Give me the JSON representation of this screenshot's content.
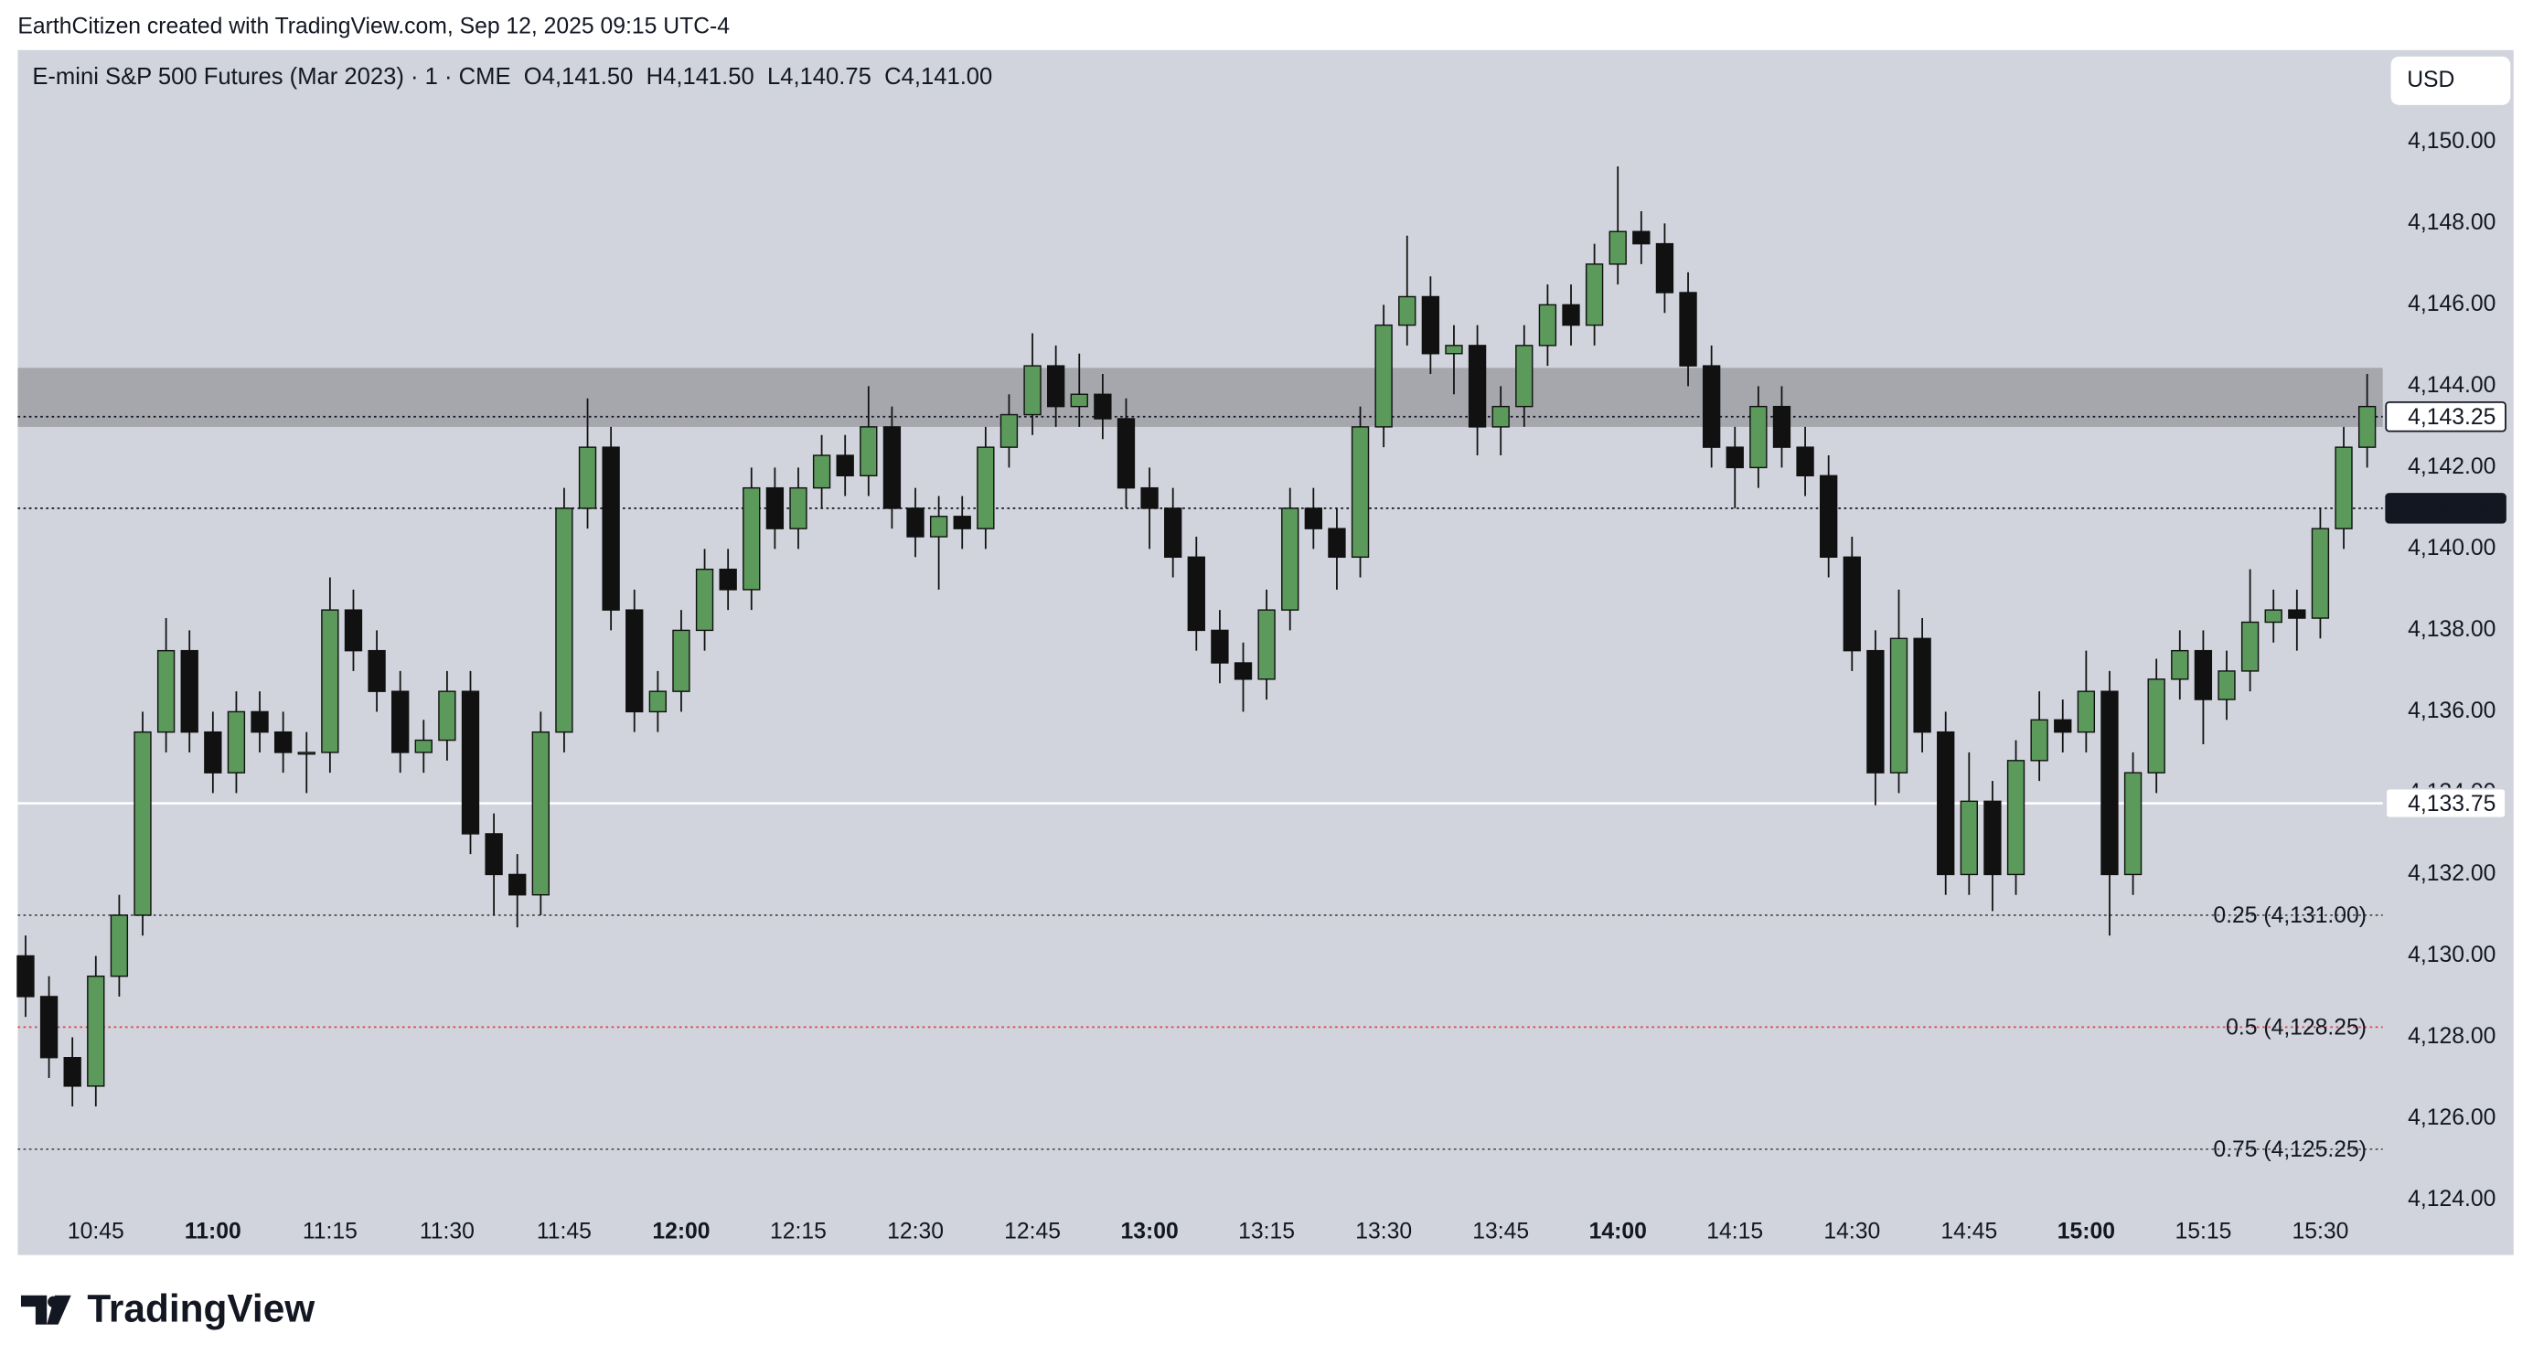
{
  "header": {
    "credit": "EarthCitizen created with TradingView.com, Sep 12, 2025 09:15 UTC-4",
    "currency_button": "USD",
    "brand": "TradingView"
  },
  "chart_data": {
    "type": "candlestick",
    "legend": {
      "title": "E-mini S&P 500 Futures (Mar 2023) · 1 · CME",
      "ohlc": [
        "O4,141.50",
        "H4,141.50",
        "L4,140.75",
        "C4,141.00"
      ]
    },
    "x": [
      "10:36",
      "10:39",
      "10:42",
      "10:45",
      "10:48",
      "10:51",
      "10:54",
      "10:57",
      "11:00",
      "11:03",
      "11:06",
      "11:09",
      "11:12",
      "11:15",
      "11:18",
      "11:21",
      "11:24",
      "11:27",
      "11:30",
      "11:33",
      "11:36",
      "11:39",
      "11:42",
      "11:45",
      "11:48",
      "11:51",
      "11:54",
      "11:57",
      "12:00",
      "12:03",
      "12:06",
      "12:09",
      "12:12",
      "12:15",
      "12:18",
      "12:21",
      "12:24",
      "12:27",
      "12:30",
      "12:33",
      "12:36",
      "12:39",
      "12:42",
      "12:45",
      "12:48",
      "12:51",
      "12:54",
      "12:57",
      "13:00",
      "13:03",
      "13:06",
      "13:09",
      "13:12",
      "13:15",
      "13:18",
      "13:21",
      "13:24",
      "13:27",
      "13:30",
      "13:33",
      "13:36",
      "13:39",
      "13:42",
      "13:45",
      "13:48",
      "13:51",
      "13:54",
      "13:57",
      "14:00",
      "14:03",
      "14:06",
      "14:09",
      "14:12",
      "14:15",
      "14:18",
      "14:21",
      "14:24",
      "14:27",
      "14:30",
      "14:33",
      "14:36",
      "14:39",
      "14:42",
      "14:45",
      "14:48",
      "14:51",
      "14:54",
      "14:57",
      "15:00",
      "15:03",
      "15:06",
      "15:09",
      "15:12",
      "15:15",
      "15:18",
      "15:21",
      "15:24",
      "15:27",
      "15:30",
      "15:33",
      "15:36"
    ],
    "open": [
      4130.0,
      4129.0,
      4127.5,
      4126.8,
      4129.5,
      4131.0,
      4135.5,
      4137.5,
      4135.5,
      4134.5,
      4136.0,
      4135.5,
      4135.0,
      4135.0,
      4138.5,
      4137.5,
      4136.5,
      4135.0,
      4135.3,
      4136.5,
      4133.0,
      4132.0,
      4131.5,
      4135.5,
      4141.0,
      4142.5,
      4138.5,
      4136.0,
      4136.5,
      4138.0,
      4139.5,
      4139.0,
      4141.5,
      4140.5,
      4141.5,
      4142.3,
      4141.8,
      4143.0,
      4141.0,
      4140.3,
      4140.8,
      4140.5,
      4142.5,
      4143.3,
      4144.5,
      4143.5,
      4143.8,
      4143.2,
      4141.5,
      4141.0,
      4139.8,
      4138.0,
      4137.2,
      4136.8,
      4138.5,
      4141.0,
      4140.5,
      4139.8,
      4143.0,
      4145.5,
      4146.2,
      4144.8,
      4145.0,
      4143.0,
      4143.5,
      4145.0,
      4146.0,
      4145.5,
      4147.0,
      4147.8,
      4147.5,
      4146.3,
      4144.5,
      4142.5,
      4142.0,
      4143.5,
      4142.5,
      4141.8,
      4139.8,
      4137.5,
      4134.5,
      4137.8,
      4135.5,
      4132.0,
      4133.8,
      4132.0,
      4134.8,
      4135.8,
      4135.5,
      4136.5,
      4132.0,
      4134.5,
      4136.8,
      4137.5,
      4136.3,
      4137.0,
      4138.2,
      4138.5,
      4138.3,
      4140.5,
      4142.5
    ],
    "high": [
      4130.5,
      4129.5,
      4128.0,
      4130.0,
      4131.5,
      4136.0,
      4138.3,
      4138.0,
      4136.0,
      4136.5,
      4136.5,
      4136.0,
      4135.5,
      4139.3,
      4139.0,
      4138.0,
      4137.0,
      4135.8,
      4137.0,
      4137.0,
      4133.5,
      4132.5,
      4136.0,
      4141.5,
      4143.7,
      4143.0,
      4139.0,
      4137.0,
      4138.5,
      4140.0,
      4140.0,
      4142.0,
      4142.0,
      4142.0,
      4142.8,
      4142.8,
      4144.0,
      4143.5,
      4141.5,
      4141.3,
      4141.3,
      4143.0,
      4143.8,
      4145.3,
      4145.0,
      4144.8,
      4144.3,
      4143.7,
      4142.0,
      4141.5,
      4140.3,
      4138.5,
      4137.7,
      4139.0,
      4141.5,
      4141.5,
      4141.0,
      4143.5,
      4146.0,
      4147.7,
      4146.7,
      4145.5,
      4145.5,
      4144.0,
      4145.5,
      4146.5,
      4146.5,
      4147.5,
      4149.4,
      4148.3,
      4148.0,
      4146.8,
      4145.0,
      4143.0,
      4144.0,
      4144.0,
      4143.0,
      4142.3,
      4140.3,
      4138.0,
      4139.0,
      4138.3,
      4136.0,
      4135.0,
      4134.3,
      4135.3,
      4136.5,
      4136.3,
      4137.5,
      4137.0,
      4135.0,
      4137.3,
      4138.0,
      4138.0,
      4137.5,
      4139.5,
      4139.0,
      4139.0,
      4141.0,
      4143.0,
      4144.3
    ],
    "low": [
      4128.5,
      4127.0,
      4126.3,
      4126.3,
      4129.0,
      4130.5,
      4135.0,
      4135.0,
      4134.0,
      4134.0,
      4135.0,
      4134.5,
      4134.0,
      4134.5,
      4137.0,
      4136.0,
      4134.5,
      4134.5,
      4134.8,
      4132.5,
      4131.0,
      4130.7,
      4131.0,
      4135.0,
      4140.5,
      4138.0,
      4135.5,
      4135.5,
      4136.0,
      4137.5,
      4138.5,
      4138.5,
      4140.0,
      4140.0,
      4141.0,
      4141.3,
      4141.3,
      4140.5,
      4139.8,
      4139.0,
      4140.0,
      4140.0,
      4142.0,
      4142.8,
      4143.0,
      4143.0,
      4142.7,
      4141.0,
      4140.0,
      4139.3,
      4137.5,
      4136.7,
      4136.0,
      4136.3,
      4138.0,
      4140.0,
      4139.0,
      4139.3,
      4142.5,
      4145.0,
      4144.3,
      4143.8,
      4142.3,
      4142.3,
      4143.0,
      4144.5,
      4145.0,
      4145.0,
      4146.5,
      4147.0,
      4145.8,
      4144.0,
      4142.0,
      4141.0,
      4141.5,
      4142.0,
      4141.3,
      4139.3,
      4137.0,
      4133.7,
      4134.0,
      4135.0,
      4131.5,
      4131.5,
      4131.1,
      4131.5,
      4134.3,
      4135.0,
      4135.0,
      4130.5,
      4131.5,
      4134.0,
      4136.3,
      4135.2,
      4135.8,
      4136.5,
      4137.7,
      4137.5,
      4137.8,
      4140.0,
      4142.0
    ],
    "close": [
      4129.0,
      4127.5,
      4126.8,
      4129.5,
      4131.0,
      4135.5,
      4137.5,
      4135.5,
      4134.5,
      4136.0,
      4135.5,
      4135.0,
      4135.0,
      4138.5,
      4137.5,
      4136.5,
      4135.0,
      4135.3,
      4136.5,
      4133.0,
      4132.0,
      4131.5,
      4135.5,
      4141.0,
      4142.5,
      4138.5,
      4136.0,
      4136.5,
      4138.0,
      4139.5,
      4139.0,
      4141.5,
      4140.5,
      4141.5,
      4142.3,
      4141.8,
      4143.0,
      4141.0,
      4140.3,
      4140.8,
      4140.5,
      4142.5,
      4143.3,
      4144.5,
      4143.5,
      4143.8,
      4143.2,
      4141.5,
      4141.0,
      4139.8,
      4138.0,
      4137.2,
      4136.8,
      4138.5,
      4141.0,
      4140.5,
      4139.8,
      4143.0,
      4145.5,
      4146.2,
      4144.8,
      4145.0,
      4143.0,
      4143.5,
      4145.0,
      4146.0,
      4145.5,
      4147.0,
      4147.8,
      4147.5,
      4146.3,
      4144.5,
      4142.5,
      4142.0,
      4143.5,
      4142.5,
      4141.8,
      4139.8,
      4137.5,
      4134.5,
      4137.8,
      4135.5,
      4132.0,
      4133.8,
      4132.0,
      4134.8,
      4135.8,
      4135.5,
      4136.5,
      4132.0,
      4134.5,
      4136.8,
      4137.5,
      4136.3,
      4137.0,
      4138.2,
      4138.5,
      4138.3,
      4140.5,
      4142.5,
      4143.5
    ],
    "up_color": "#5b9a5b",
    "down_color": "#111111",
    "xlim": [
      "10:35",
      "15:38"
    ],
    "xticks": [
      "10:45",
      "11:00",
      "11:15",
      "11:30",
      "11:45",
      "12:00",
      "12:15",
      "12:30",
      "12:45",
      "13:00",
      "13:15",
      "13:30",
      "13:45",
      "14:00",
      "14:15",
      "14:30",
      "14:45",
      "15:00",
      "15:15",
      "15:30"
    ],
    "ylim": [
      4123.72,
      4152.26
    ],
    "yticks": [
      {
        "value": 4124,
        "label": "4,124.00"
      },
      {
        "value": 4126,
        "label": "4,126.00"
      },
      {
        "value": 4128,
        "label": "4,128.00"
      },
      {
        "value": 4130,
        "label": "4,130.00"
      },
      {
        "value": 4132,
        "label": "4,132.00"
      },
      {
        "value": 4134,
        "label": "4,134.00"
      },
      {
        "value": 4136,
        "label": "4,136.00"
      },
      {
        "value": 4138,
        "label": "4,138.00"
      },
      {
        "value": 4140,
        "label": "4,140.00"
      },
      {
        "value": 4142,
        "label": "4,142.00"
      },
      {
        "value": 4144,
        "label": "4,144.00"
      },
      {
        "value": 4146,
        "label": "4,146.00"
      },
      {
        "value": 4148,
        "label": "4,148.00"
      },
      {
        "value": 4150,
        "label": "4,150.00"
      }
    ],
    "zone": {
      "from": 4143.0,
      "to": 4144.45,
      "color": "#9e9fa3"
    },
    "levels": [
      {
        "value": 4143.25,
        "label": "4,143.25",
        "line": "dotted",
        "badge": "outlined"
      },
      {
        "value": 4141.0,
        "label": "4,141.00",
        "line": "dotted",
        "badge": "dark"
      },
      {
        "value": 4133.75,
        "label": "4,133.75",
        "line": "solid",
        "badge": "light"
      }
    ],
    "fib_lines": [
      {
        "value": 4131.0,
        "label": "0.25 (4,131.00)",
        "color": "#555555"
      },
      {
        "value": 4128.25,
        "label": "0.5 (4,128.25)",
        "color": "#e0434a"
      },
      {
        "value": 4125.25,
        "label": "0.75 (4,125.25)",
        "color": "#555555"
      }
    ]
  }
}
